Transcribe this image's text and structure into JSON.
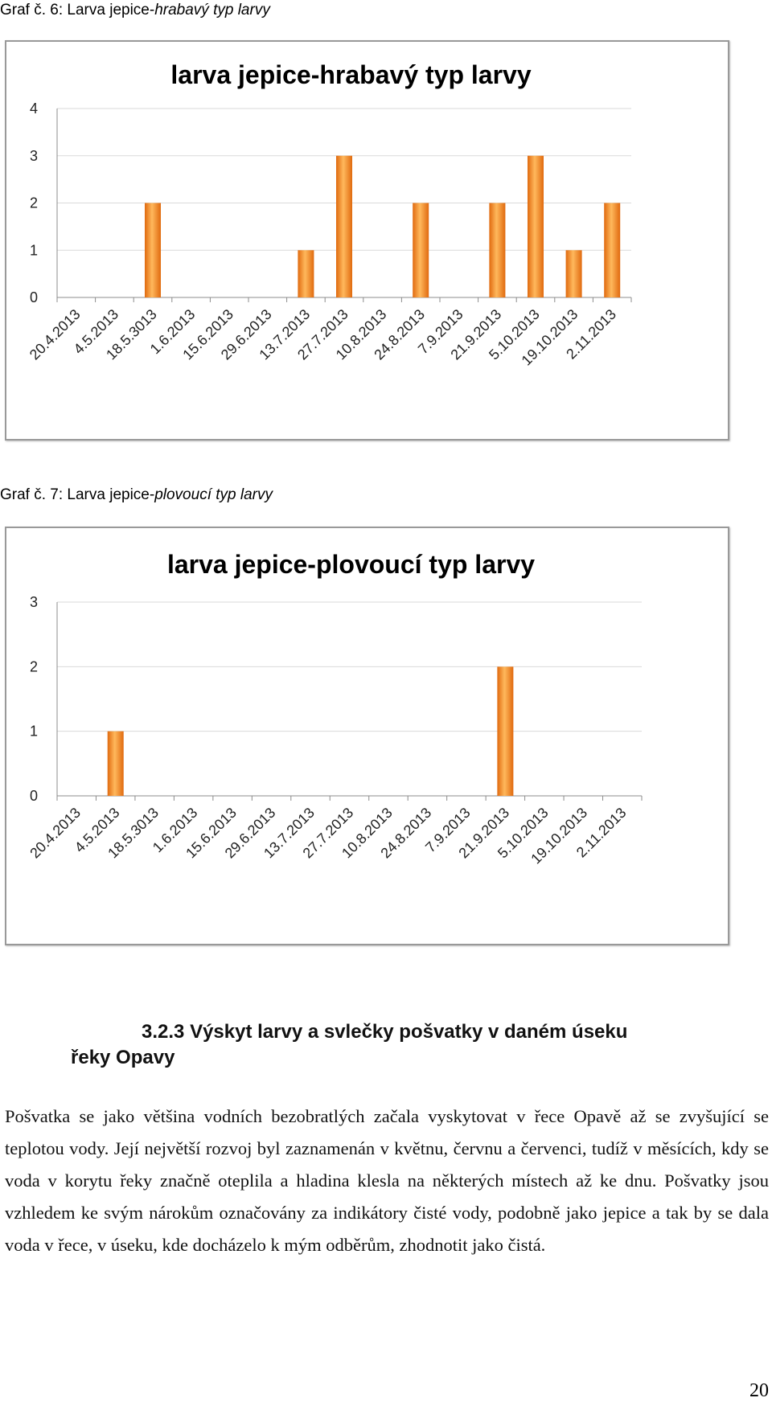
{
  "captions": [
    {
      "prefix": "Graf č. 6: Larva jepice-",
      "rest": "hrabavý typ larvy"
    },
    {
      "prefix": "Graf č. 7: Larva jepice-",
      "rest": "plovoucí typ larvy"
    }
  ],
  "colors": {
    "bar_light": "#ffb85c",
    "bar_dark": "#e06a0f",
    "grid": "#d9d9d9",
    "axis": "#8c8c8c"
  },
  "chart_data": [
    {
      "type": "bar",
      "title": "larva jepice-hrabavý typ larvy",
      "categories": [
        "20.4.2013",
        "4.5.2013",
        "18.5.3013",
        "1.6.2013",
        "15.6.2013",
        "29.6.2013",
        "13.7.2013",
        "27.7.2013",
        "10.8.2013",
        "24.8.2013",
        "7.9.2013",
        "21.9.2013",
        "5.10.2013",
        "19.10.2013",
        "2.11.2013"
      ],
      "values": [
        0,
        0,
        2,
        0,
        0,
        0,
        1,
        3,
        0,
        2,
        0,
        2,
        3,
        1,
        2
      ],
      "yticks": [
        "0",
        "1",
        "2",
        "3",
        "4"
      ],
      "ylim": [
        0,
        4
      ],
      "grid": true,
      "legend": "none"
    },
    {
      "type": "bar",
      "title": "larva jepice-plovoucí typ larvy",
      "categories": [
        "20.4.2013",
        "4.5.2013",
        "18.5.3013",
        "1.6.2013",
        "15.6.2013",
        "29.6.2013",
        "13.7.2013",
        "27.7.2013",
        "10.8.2013",
        "24.8.2013",
        "7.9.2013",
        "21.9.2013",
        "5.10.2013",
        "19.10.2013",
        "2.11.2013"
      ],
      "values": [
        0,
        1,
        0,
        0,
        0,
        0,
        0,
        0,
        0,
        0,
        0,
        2,
        0,
        0,
        0
      ],
      "yticks": [
        "0",
        "1",
        "2",
        "3"
      ],
      "ylim": [
        0,
        3
      ],
      "grid": true,
      "legend": "none"
    }
  ],
  "section": {
    "number": "3.2.3",
    "title_line1": "Výskyt larvy a svlečky pošvatky v daném úseku",
    "title_line2": "řeky Opavy"
  },
  "paragraph": "Pošvatka se jako většina vodních bezobratlých začala vyskytovat v řece Opavě až se zvyšující se teplotou vody. Její největší rozvoj byl zaznamenán v květnu, červnu a červenci, tudíž v měsících, kdy se voda v korytu řeky značně oteplila a hladina klesla na některých místech až ke dnu. Pošvatky jsou vzhledem ke svým nárokům označovány za indikátory čisté vody, podobně jako jepice a tak by se dala voda v řece, v úseku, kde docházelo k mým odběrům, zhodnotit jako čistá.",
  "page_number": "20"
}
